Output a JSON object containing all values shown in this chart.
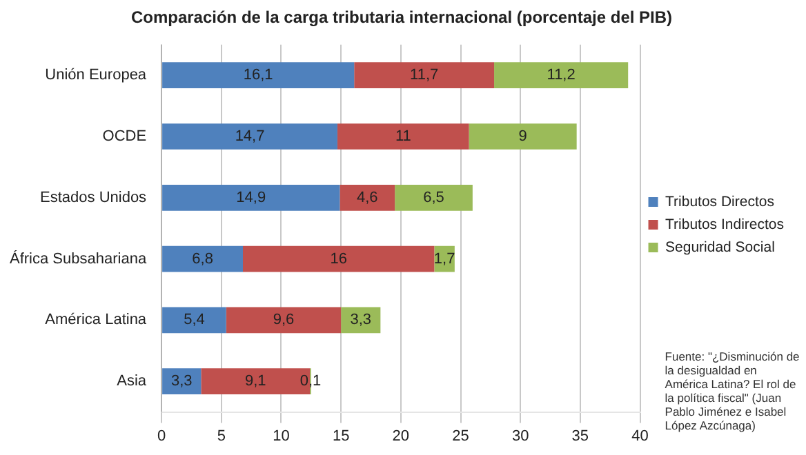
{
  "chart_data": {
    "type": "bar",
    "orientation": "horizontal",
    "stacked": true,
    "title": "Comparación de la carga tributaria internacional (porcentaje del PIB)",
    "categories": [
      "Unión Europea",
      "OCDE",
      "Estados Unidos",
      "África Subsahariana",
      "América Latina",
      "Asia"
    ],
    "series": [
      {
        "name": "Tributos Directos",
        "color": "#4f81bd",
        "values": [
          16.1,
          14.7,
          14.9,
          6.8,
          5.4,
          3.3
        ],
        "value_labels": [
          "16,1",
          "14,7",
          "14,9",
          "6,8",
          "5,4",
          "3,3"
        ]
      },
      {
        "name": "Tributos Indirectos",
        "color": "#c0504d",
        "values": [
          11.7,
          11,
          4.6,
          16,
          9.6,
          9.1
        ],
        "value_labels": [
          "11,7",
          "11",
          "4,6",
          "16",
          "9,6",
          "9,1"
        ]
      },
      {
        "name": "Seguridad Social",
        "color": "#9bbb59",
        "values": [
          11.2,
          9,
          6.5,
          1.7,
          3.3,
          0.1
        ],
        "value_labels": [
          "11,2",
          "9",
          "6,5",
          "1,7",
          "3,3",
          "0,1"
        ]
      }
    ],
    "xlim": [
      0,
      40
    ],
    "xticks": [
      0,
      5,
      10,
      15,
      20,
      25,
      30,
      35,
      40
    ],
    "grid": "x",
    "legend": "right",
    "annotations": [
      "Fuente: \"¿Disminución de la desigualdad en América Latina? El rol de la política fiscal\" (Juan Pablo Jiménez e Isabel López Azcúnaga)"
    ]
  }
}
